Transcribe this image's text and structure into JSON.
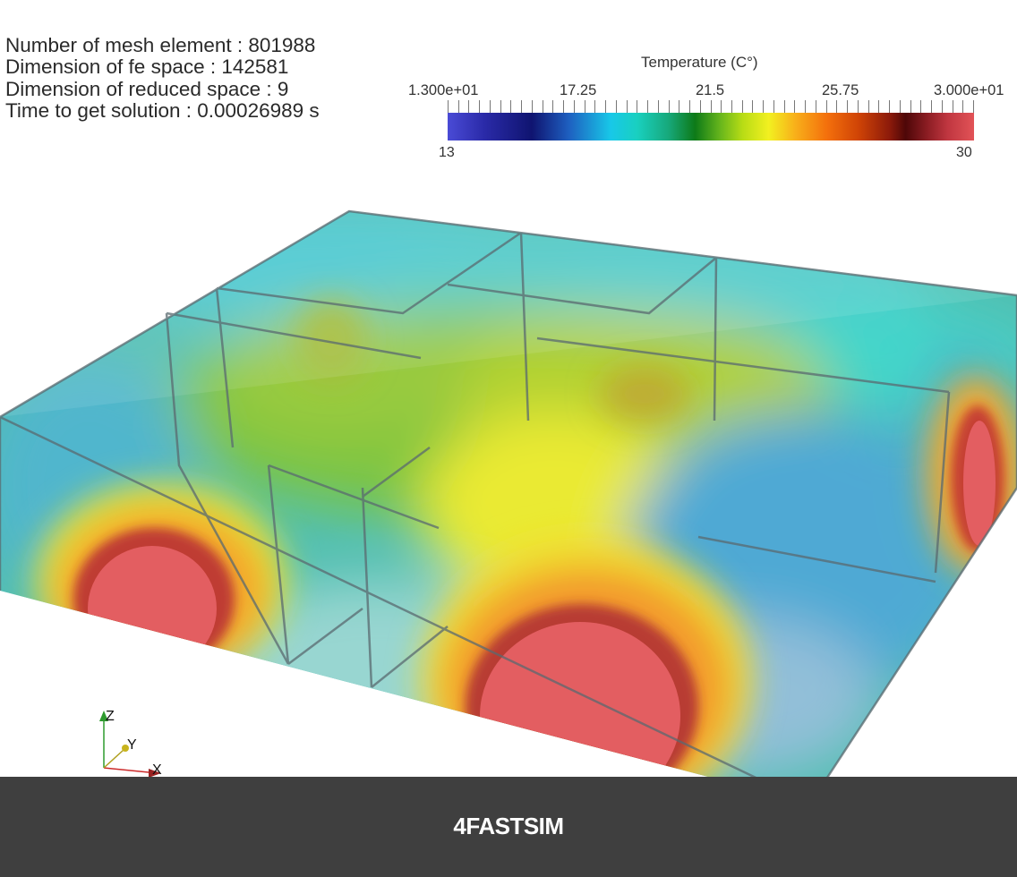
{
  "stats": {
    "mesh_elements": "Number of mesh element : 801988",
    "fe_space": "Dimension of fe space : 142581",
    "reduced_space": "Dimension of reduced space : 9",
    "solution_time": "Time to get solution : 0.00026989 s"
  },
  "colorbar": {
    "title": "Temperature (C°)",
    "tick_labels": [
      "1.300e+01",
      "17.25",
      "21.5",
      "25.75",
      "3.000e+01"
    ],
    "range_min": "13",
    "range_max": "30",
    "min_value": 13,
    "max_value": 30,
    "colors": [
      "#4a4bd6",
      "#0f1470",
      "#18c8e8",
      "#0d7a18",
      "#f2f020",
      "#f4700c",
      "#4e0708",
      "#e25357"
    ]
  },
  "axes": {
    "z": "Z",
    "y": "Y",
    "x": "X"
  },
  "footer": {
    "brand": "4FASTSIM"
  },
  "colors": {
    "hot": "#e04c50",
    "footer_bg": "#3f3f3f",
    "accent_axis_z": "#2e9a2e",
    "accent_axis_x": "#cc2a2a"
  }
}
